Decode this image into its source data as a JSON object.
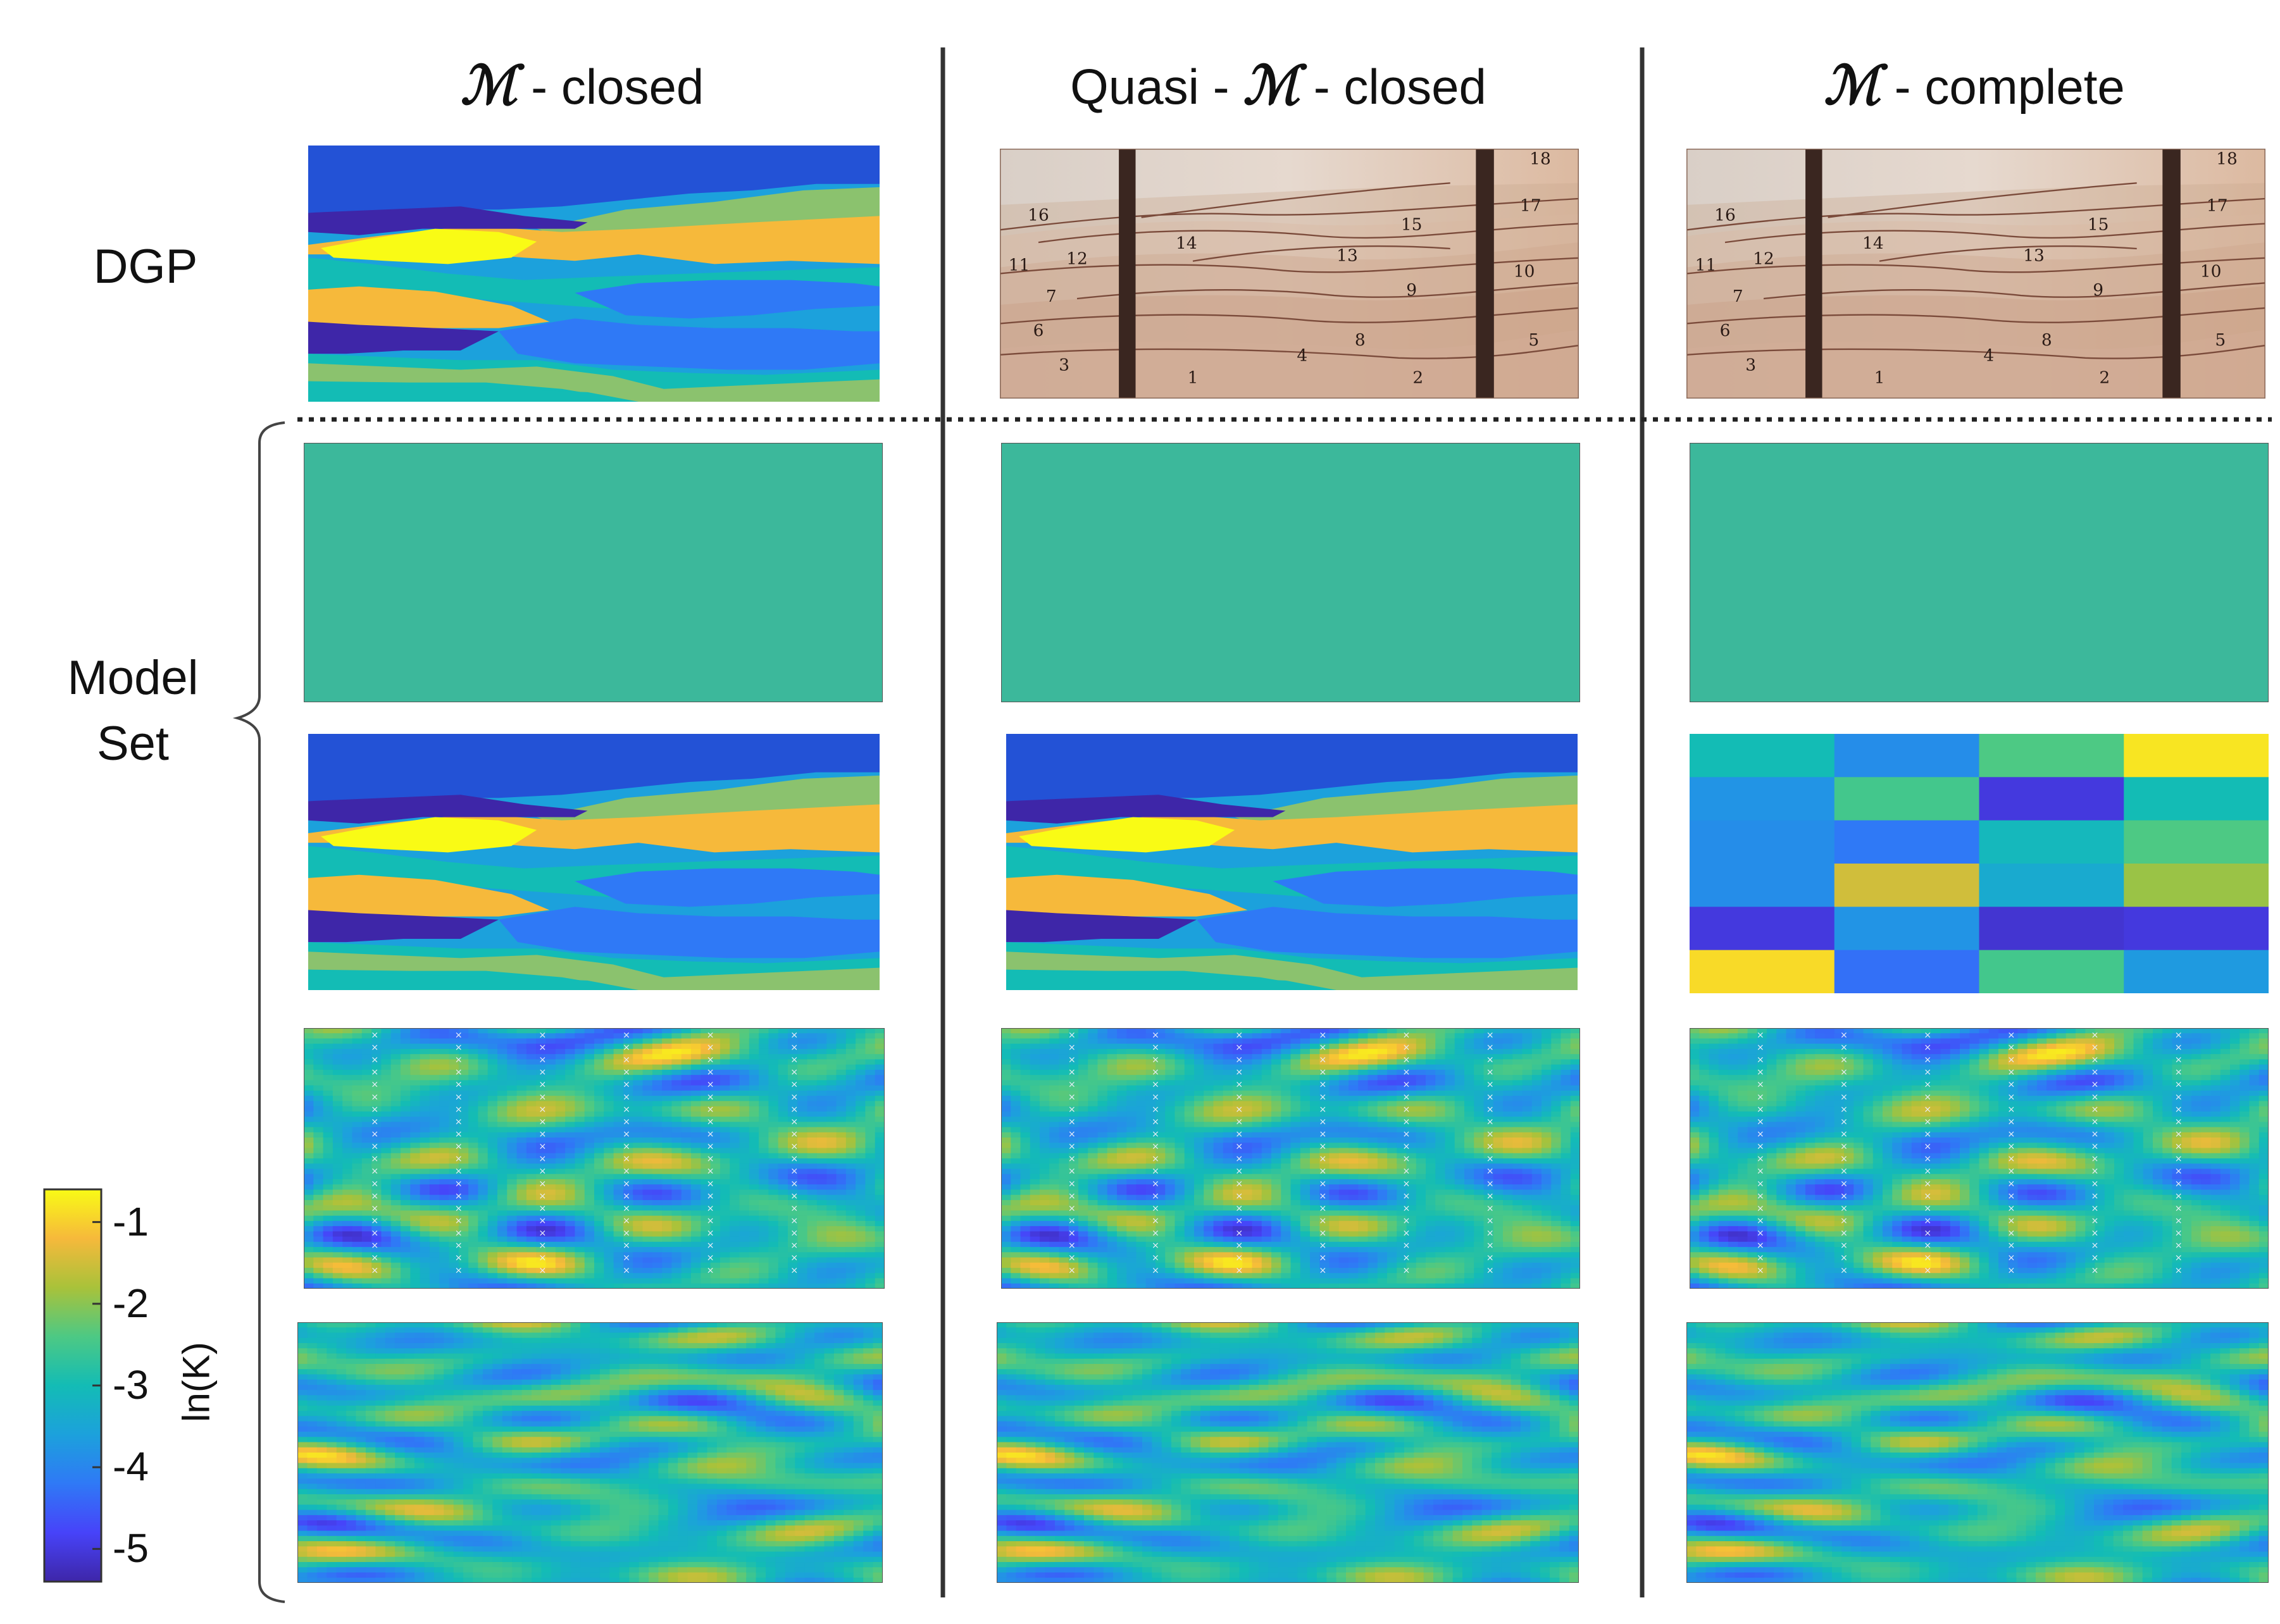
{
  "columns": [
    {
      "symbol": "ℳ",
      "title_pre": "",
      "title_post": " - closed"
    },
    {
      "symbol": "ℳ",
      "title_pre": "Quasi - ",
      "title_post": " - closed"
    },
    {
      "symbol": "ℳ",
      "title_pre": "",
      "title_post": " - complete"
    }
  ],
  "rows": {
    "dgp_label": "DGP",
    "model_set_label_1": "Model",
    "model_set_label_2": "Set"
  },
  "sandbox_numbers": [
    "1",
    "2",
    "3",
    "4",
    "5",
    "6",
    "7",
    "8",
    "9",
    "10",
    "11",
    "12",
    "13",
    "14",
    "15",
    "16",
    "17",
    "18"
  ],
  "colorbar": {
    "label": "ln(K)",
    "ticks": [
      "-1",
      "-2",
      "-3",
      "-4",
      "-5"
    ],
    "range": [
      -5.4,
      -0.6
    ],
    "colormap": [
      "#3e26a8",
      "#4743f9",
      "#2f79f6",
      "#1ca1dc",
      "#13bcb5",
      "#4dc984",
      "#a9c23a",
      "#f6b93b",
      "#f9fb15"
    ]
  },
  "colors": {
    "uniform_field": "#3cb89b",
    "zonal_background": "#2352d6",
    "zonal_top_band": "#2352d6",
    "divider": "#333333"
  },
  "coarse_grid_values": [
    [
      -3.0,
      -3.9,
      -2.4,
      -0.8
    ],
    [
      -3.8,
      -2.5,
      -5.0,
      -3.0
    ],
    [
      -3.9,
      -4.2,
      -3.1,
      -2.4
    ],
    [
      -3.9,
      -1.5,
      -3.4,
      -1.9
    ],
    [
      -5.0,
      -3.8,
      -5.1,
      -5.0
    ],
    [
      -0.9,
      -4.3,
      -2.5,
      -3.7
    ]
  ]
}
